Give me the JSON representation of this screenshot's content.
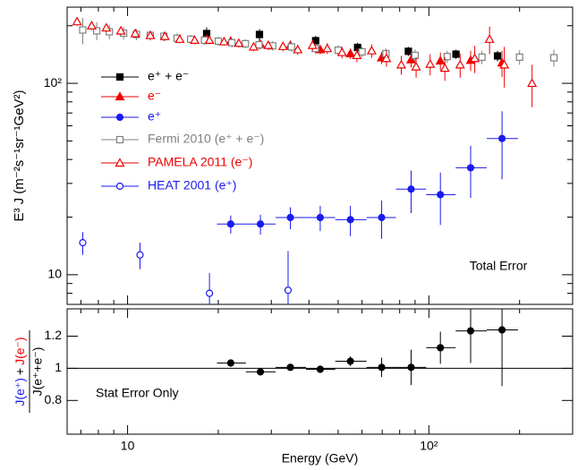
{
  "chart_data": [
    {
      "type": "scatter",
      "xlog": true,
      "ylog": true,
      "xlim": [
        6.3,
        300
      ],
      "ylim": [
        7,
        250
      ],
      "xticks": [
        10,
        100
      ],
      "xminorticks": [
        7,
        8,
        9,
        20,
        30,
        40,
        50,
        60,
        70,
        80,
        90,
        200,
        300
      ],
      "show_xticklabels": false,
      "yticks": [
        10,
        {
          "value": 100,
          "label": "10²"
        }
      ],
      "yminorticks": [
        8,
        9,
        20,
        30,
        40,
        50,
        60,
        70,
        80,
        90,
        200
      ],
      "ylabel": "E³ J  (m⁻²s⁻¹sr⁻¹GeV²)",
      "annotation": "Total Error",
      "legend": "upper left",
      "series": [
        {
          "name": "e⁺ + e⁻",
          "color": "#000000",
          "marker": "square",
          "filled": true,
          "x": [
            18.3,
            27.4,
            42.1,
            58,
            85.5,
            123,
            169
          ],
          "values": [
            182,
            180,
            167,
            154,
            147,
            142,
            139
          ],
          "yerr": [
            14,
            12,
            10,
            9,
            8,
            8,
            9
          ]
        },
        {
          "name": "e⁻",
          "color": "#ee0000",
          "marker": "triangle",
          "filled": true,
          "x": [
            18.3,
            22,
            27.6,
            34.7,
            43.6,
            54.9,
            69.7,
            87.3,
            109.2,
            137.6,
            174.9
          ],
          "values": [
            170,
            166,
            160,
            158,
            150,
            143,
            136,
            133,
            131,
            132,
            128
          ],
          "yerr": [
            10,
            9,
            9,
            8,
            8,
            9,
            10,
            12,
            14,
            16,
            20
          ]
        },
        {
          "name": "e⁺",
          "color": "#1a1aee",
          "marker": "circle",
          "filled": true,
          "x": [
            22.0,
            27.6,
            34.7,
            43.6,
            54.9,
            69.7,
            87.3,
            109.2,
            137.6,
            174.9
          ],
          "values": [
            18.4,
            18.4,
            19.9,
            19.9,
            19.4,
            19.9,
            28.0,
            26.2,
            36.2,
            51.5
          ],
          "yerr": [
            2.0,
            2.2,
            2.6,
            3.0,
            3.5,
            4.5,
            7,
            8,
            11,
            20
          ],
          "xbins": [
            19.8,
            24.7,
            31.0,
            39.1,
            48.9,
            62.1,
            77.8,
            98.0,
            122.7,
            155.6,
            197.6
          ]
        },
        {
          "name": "Fermi 2010 (e⁺ + e⁻)",
          "color": "#808080",
          "marker": "square",
          "filled": false,
          "x": [
            7.1,
            7.9,
            8.7,
            9.7,
            10.7,
            11.9,
            13.2,
            14.6,
            16.2,
            18.0,
            20.0,
            22.2,
            24.6,
            27.3,
            30.3,
            35,
            42,
            50,
            60,
            72,
            90,
            115,
            150,
            200,
            260
          ],
          "values": [
            190,
            188,
            186,
            183,
            180,
            178,
            176,
            172,
            170,
            168,
            166,
            163,
            161,
            159,
            157,
            155,
            152,
            149,
            146,
            143,
            140,
            138,
            137,
            137,
            136
          ],
          "yerr": [
            30,
            20,
            16,
            14,
            12,
            11,
            10,
            10,
            9,
            9,
            9,
            9,
            9,
            9,
            9,
            9,
            9,
            9,
            9,
            9,
            10,
            10,
            11,
            12,
            14
          ]
        },
        {
          "name": "PAMELA 2011 (e⁻)",
          "color": "#ee0000",
          "marker": "triangle",
          "filled": false,
          "x": [
            6.8,
            7.6,
            8.5,
            9.5,
            10.6,
            11.9,
            13.3,
            14.9,
            16.7,
            18.7,
            20.9,
            23.4,
            26.2,
            29.3,
            32.8,
            36.7,
            41.1,
            46,
            51.5,
            57.7,
            64.6,
            72.3,
            81,
            90.7,
            101,
            113,
            127,
            142,
            159,
            178,
            220
          ],
          "values": [
            210,
            200,
            195,
            188,
            182,
            178,
            176,
            170,
            168,
            168,
            165,
            162,
            155,
            158,
            156,
            150,
            158,
            152,
            145,
            140,
            148,
            135,
            125,
            122,
            126,
            120,
            125,
            135,
            170,
            125,
            100
          ],
          "yerr": [
            10,
            10,
            9,
            9,
            9,
            9,
            9,
            8,
            8,
            8,
            8,
            8,
            8,
            9,
            9,
            9,
            10,
            10,
            10,
            11,
            12,
            13,
            14,
            15,
            16,
            17,
            18,
            22,
            28,
            30,
            25
          ]
        },
        {
          "name": "HEAT 2001 (e⁺)",
          "color": "#1a1aee",
          "marker": "circle",
          "filled": false,
          "x": [
            7.1,
            11.0,
            18.7,
            34.1
          ],
          "values": [
            14.7,
            12.7,
            8.0,
            8.3
          ],
          "yerr": [
            2,
            2,
            2.2,
            5
          ]
        }
      ]
    },
    {
      "type": "scatter",
      "xlog": true,
      "ylog": false,
      "xlim": [
        6.3,
        300
      ],
      "ylim": [
        0.59,
        1.37
      ],
      "xticks": [
        10,
        {
          "value": 100,
          "label": "10²"
        }
      ],
      "xminorticks": [
        7,
        8,
        9,
        20,
        30,
        40,
        50,
        60,
        70,
        80,
        90,
        200,
        300
      ],
      "show_xticklabels": true,
      "yticks": [
        0.8,
        1,
        1.2
      ],
      "reference_line": 1,
      "xlabel": "Energy (GeV)",
      "annotation": "Stat Error Only",
      "ylabel": {
        "numerator": [
          {
            "text": "J(e⁺)",
            "color": "#1a1aee"
          },
          {
            "text": "+",
            "color": "#000000"
          },
          {
            "text": "J(e⁻)",
            "color": "#ee0000"
          }
        ],
        "denominator": "J(e⁺+e⁻)"
      },
      "series": [
        {
          "color": "#000000",
          "marker": "circle",
          "filled": true,
          "x": [
            22.0,
            27.6,
            34.7,
            43.6,
            54.9,
            69.7,
            87.3,
            109.2,
            137.6,
            174.9
          ],
          "values": [
            1.033,
            0.978,
            1.006,
            0.994,
            1.044,
            1.006,
            1.006,
            1.128,
            1.233,
            1.239
          ],
          "yerr": [
            0.01,
            0.01,
            0.01,
            0.015,
            0.03,
            0.06,
            0.11,
            0.1,
            0.2,
            0.35
          ],
          "xbins": [
            19.8,
            24.7,
            31.0,
            39.1,
            48.9,
            62.1,
            77.8,
            98.0,
            122.7,
            155.6,
            197.6
          ]
        }
      ]
    }
  ]
}
